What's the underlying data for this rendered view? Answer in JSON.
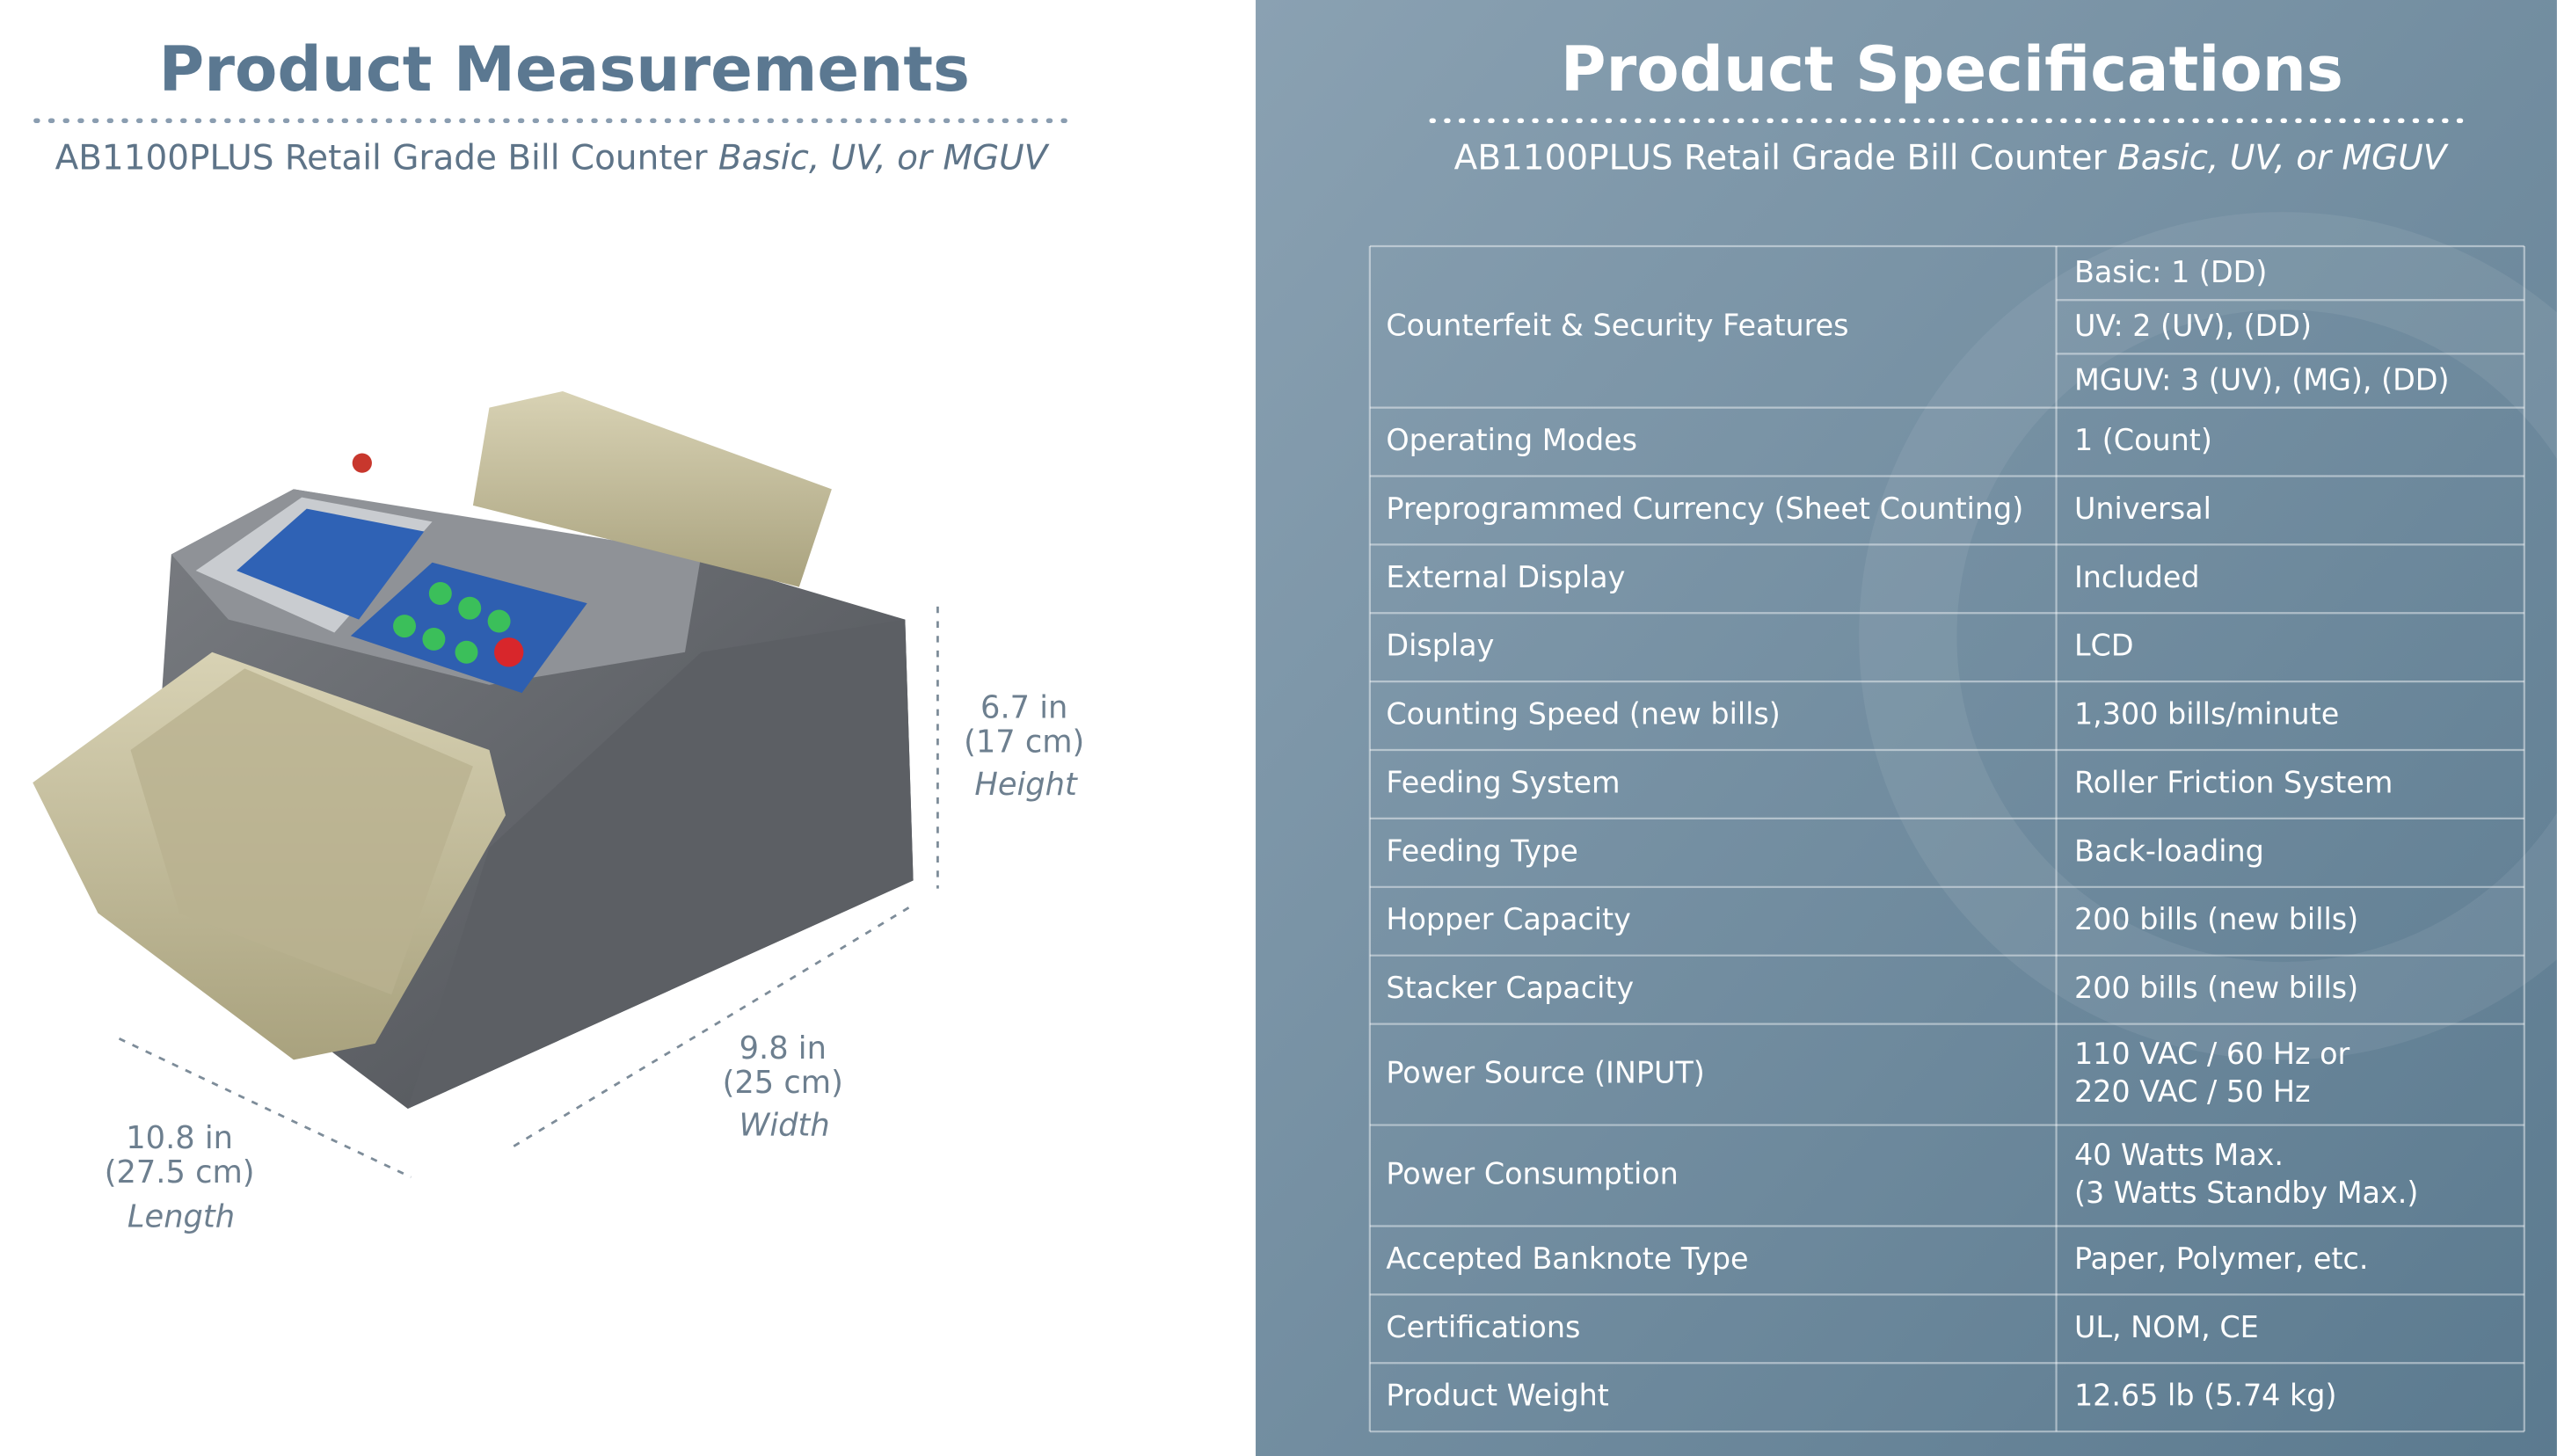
{
  "measurements": {
    "title": "Product Measurements",
    "subtitle": "AB1100PLUS Retail Grade Bill Counter",
    "subtitle_italic": "Basic, UV, or MGUV",
    "height": {
      "inches": "6.7 in",
      "cm": "(17 cm)",
      "label": "Height"
    },
    "width": {
      "inches": "9.8 in",
      "cm": "(25 cm)",
      "label": "Width"
    },
    "length": {
      "inches": "10.8 in",
      "cm": "(27.5  cm)",
      "label": "Length"
    }
  },
  "specifications": {
    "title": "Product Specifications",
    "subtitle": "AB1100PLUS Retail Grade Bill Counter",
    "subtitle_italic": "Basic, UV, or MGUV",
    "rows": [
      {
        "label": "Counterfeit & Security Features",
        "cells": [
          "Basic: 1 (DD)",
          "UV: 2 (UV), (DD)",
          "MGUV: 3 (UV), (MG), (DD)"
        ]
      },
      {
        "label": "Operating Modes",
        "value": "1 (Count)"
      },
      {
        "label": "Preprogrammed Currency (Sheet Counting)",
        "value": "Universal"
      },
      {
        "label": "External Display",
        "value": "Included"
      },
      {
        "label": "Display",
        "value": "LCD"
      },
      {
        "label": "Counting Speed (new bills)",
        "value": "1,300 bills/minute"
      },
      {
        "label": "Feeding System",
        "value": "Roller Friction System"
      },
      {
        "label": "Feeding Type",
        "value": "Back-loading"
      },
      {
        "label": "Hopper Capacity",
        "value": "200 bills (new bills)"
      },
      {
        "label": "Stacker Capacity",
        "value": "200 bills (new bills)"
      },
      {
        "label": "Power Source (INPUT)",
        "lines": [
          "110 VAC / 60 Hz or",
          "220 VAC / 50 Hz"
        ]
      },
      {
        "label": "Power Consumption",
        "lines": [
          "40 Watts Max.",
          "(3 Watts Standby Max.)"
        ]
      },
      {
        "label": "Accepted Banknote Type",
        "value": "Paper, Polymer, etc."
      },
      {
        "label": "Certifications",
        "value": "UL, NOM, CE"
      },
      {
        "label": "Product Weight",
        "value": "12.65 lb (5.74 kg)"
      }
    ]
  }
}
